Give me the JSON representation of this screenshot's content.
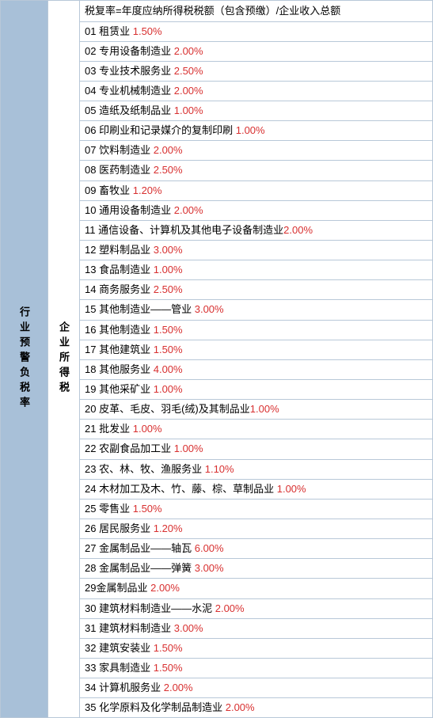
{
  "left_label": "行业预警负税率",
  "mid_label": "企业所得税",
  "formula": "税复率=年度应纳所得税税额（包含预缴）/企业收入总额",
  "rate_color": "#d83030",
  "text_color": "#000000",
  "left_bg": "#a8c0d8",
  "border_color": "#b8c8d8",
  "font_size": 13,
  "rows": [
    {
      "num": "01",
      "name": "租赁业",
      "rate": "1.50%",
      "space": true
    },
    {
      "num": "02",
      "name": "专用设备制造业",
      "rate": "2.00%",
      "space": true
    },
    {
      "num": "03",
      "name": "专业技术服务业",
      "rate": "2.50%",
      "space": true
    },
    {
      "num": "04",
      "name": "专业机械制造业",
      "rate": "2.00%",
      "space": true
    },
    {
      "num": "05",
      "name": "造纸及纸制品业",
      "rate": "1.00%",
      "space": true
    },
    {
      "num": "06",
      "name": "印刷业和记录媒介的复制印刷",
      "rate": "1.00%",
      "space": true
    },
    {
      "num": "07",
      "name": "饮料制造业",
      "rate": "2.00%",
      "space": true
    },
    {
      "num": "08",
      "name": "医药制造业",
      "rate": "2.50%",
      "space": true
    },
    {
      "num": "09",
      "name": "畜牧业",
      "rate": "1.20%",
      "space": true
    },
    {
      "num": "10",
      "name": "通用设备制造业",
      "rate": "2.00%",
      "space": true
    },
    {
      "num": "11",
      "name": "通信设备、计算机及其他电子设备制造业",
      "rate": "2.00%",
      "space": false
    },
    {
      "num": "12",
      "name": "塑料制品业",
      "rate": "3.00%",
      "space": true
    },
    {
      "num": "13",
      "name": "食品制造业",
      "rate": "1.00%",
      "space": true
    },
    {
      "num": "14",
      "name": "商务服务业",
      "rate": "2.50%",
      "space": true
    },
    {
      "num": "15",
      "name": "其他制造业——管业",
      "rate": "3.00%",
      "space": true
    },
    {
      "num": "16",
      "name": "其他制造业",
      "rate": "1.50%",
      "space": true
    },
    {
      "num": "17",
      "name": "其他建筑业",
      "rate": "1.50%",
      "space": true
    },
    {
      "num": "18",
      "name": "其他服务业",
      "rate": "4.00%",
      "space": true
    },
    {
      "num": "19",
      "name": "其他采矿业",
      "rate": "1.00%",
      "space": true
    },
    {
      "num": "20",
      "name": "皮革、毛皮、羽毛(绒)及其制品业",
      "rate": "1.00%",
      "space": false
    },
    {
      "num": "21",
      "name": "批发业",
      "rate": "1.00%",
      "space": true
    },
    {
      "num": "22",
      "name": "农副食品加工业",
      "rate": "1.00%",
      "space": true
    },
    {
      "num": "23",
      "name": "农、林、牧、渔服务业",
      "rate": "1.10%",
      "space": true
    },
    {
      "num": "24",
      "name": "木材加工及木、竹、藤、棕、草制品业",
      "rate": "1.00%",
      "space": true
    },
    {
      "num": "25",
      "name": "零售业",
      "rate": "1.50%",
      "space": true
    },
    {
      "num": "26",
      "name": "居民服务业",
      "rate": "1.20%",
      "space": true
    },
    {
      "num": "27",
      "name": "金属制品业——轴瓦",
      "rate": "6.00%",
      "space": true
    },
    {
      "num": "28",
      "name": "金属制品业——弹簧",
      "rate": "3.00%",
      "space": true
    },
    {
      "num": "29",
      "name": "金属制品业",
      "rate": "2.00%",
      "space": true,
      "nospace_after_num": true
    },
    {
      "num": "30",
      "name": "建筑材料制造业——水泥",
      "rate": "2.00%",
      "space": true
    },
    {
      "num": "31",
      "name": "建筑材料制造业",
      "rate": "3.00%",
      "space": true
    },
    {
      "num": "32",
      "name": "建筑安装业",
      "rate": "1.50%",
      "space": true
    },
    {
      "num": "33",
      "name": "家具制造业",
      "rate": "1.50%",
      "space": true
    },
    {
      "num": "34",
      "name": "计算机服务业",
      "rate": "2.00%",
      "space": true
    },
    {
      "num": "35",
      "name": "化学原料及化学制品制造业",
      "rate": "2.00%",
      "space": true
    }
  ]
}
